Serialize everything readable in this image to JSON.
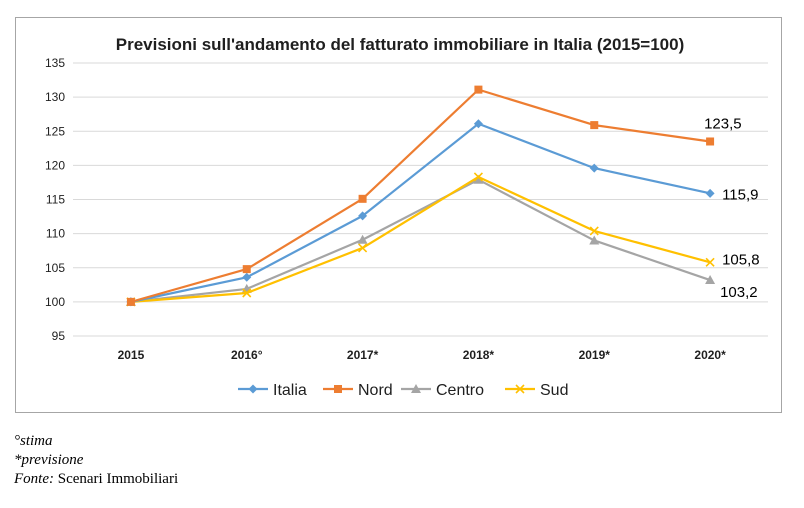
{
  "chart_data": {
    "type": "line",
    "title": "Previsioni sull'andamento del fatturato immobiliare in Italia (2015=100)",
    "categories": [
      "2015",
      "2016°",
      "2017*",
      "2018*",
      "2019*",
      "2020*"
    ],
    "ylim": [
      95,
      135
    ],
    "yticks": [
      95,
      100,
      105,
      110,
      115,
      120,
      125,
      130,
      135
    ],
    "grid": true,
    "legend_position": "bottom",
    "series": [
      {
        "name": "Italia",
        "color": "#5b9bd5",
        "marker": "diamond",
        "values": [
          100,
          103.6,
          112.6,
          126.1,
          119.6,
          115.9
        ],
        "end_label": "115,9"
      },
      {
        "name": "Nord",
        "color": "#ed7d31",
        "marker": "square",
        "values": [
          100,
          104.8,
          115.1,
          131.1,
          125.9,
          123.5
        ],
        "end_label": "123,5"
      },
      {
        "name": "Centro",
        "color": "#a5a5a5",
        "marker": "triangle",
        "values": [
          100,
          101.9,
          109.1,
          117.9,
          109.0,
          103.2
        ],
        "end_label": "103,2"
      },
      {
        "name": "Sud",
        "color": "#ffc000",
        "marker": "x",
        "values": [
          100,
          101.3,
          107.9,
          118.3,
          110.4,
          105.8
        ],
        "end_label": "105,8"
      }
    ]
  },
  "notes": {
    "stima": "°stima",
    "previsione": "*previsione",
    "fonte_label": "Fonte:",
    "fonte_value": " Scenari Immobiliari"
  }
}
